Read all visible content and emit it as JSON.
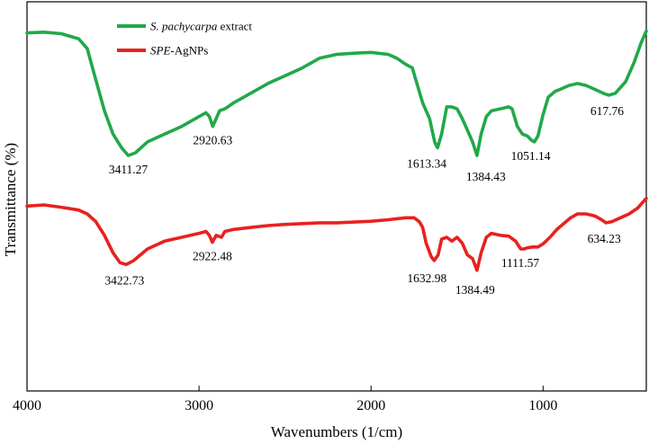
{
  "chart_data": {
    "type": "line",
    "xlabel": "Wavenumbers (1/cm)",
    "ylabel": "Transmittance (%)",
    "xlim": [
      4000,
      400
    ],
    "x_ticks": [
      4000,
      3000,
      2000,
      1000
    ],
    "x_tick_labels": [
      "4000",
      "3000",
      "2000",
      "1000"
    ],
    "legend_position": "top-left",
    "series": [
      {
        "name_italic": "S. pachycarpa",
        "name_rest": " extract",
        "name": "S. pachycarpa extract",
        "color": "#22a84a",
        "points": [
          [
            4000,
            0.92
          ],
          [
            3900,
            0.922
          ],
          [
            3800,
            0.918
          ],
          [
            3700,
            0.905
          ],
          [
            3650,
            0.88
          ],
          [
            3600,
            0.8
          ],
          [
            3550,
            0.72
          ],
          [
            3500,
            0.66
          ],
          [
            3450,
            0.625
          ],
          [
            3411.27,
            0.605
          ],
          [
            3370,
            0.612
          ],
          [
            3300,
            0.64
          ],
          [
            3200,
            0.66
          ],
          [
            3100,
            0.68
          ],
          [
            3000,
            0.705
          ],
          [
            2960,
            0.715
          ],
          [
            2940,
            0.705
          ],
          [
            2920.63,
            0.68
          ],
          [
            2900,
            0.7
          ],
          [
            2880,
            0.72
          ],
          [
            2850,
            0.725
          ],
          [
            2800,
            0.74
          ],
          [
            2700,
            0.765
          ],
          [
            2600,
            0.79
          ],
          [
            2500,
            0.81
          ],
          [
            2400,
            0.83
          ],
          [
            2300,
            0.855
          ],
          [
            2200,
            0.865
          ],
          [
            2100,
            0.868
          ],
          [
            2000,
            0.87
          ],
          [
            1900,
            0.865
          ],
          [
            1850,
            0.855
          ],
          [
            1800,
            0.84
          ],
          [
            1760,
            0.83
          ],
          [
            1740,
            0.8
          ],
          [
            1700,
            0.74
          ],
          [
            1660,
            0.7
          ],
          [
            1630,
            0.64
          ],
          [
            1613.34,
            0.625
          ],
          [
            1590,
            0.66
          ],
          [
            1560,
            0.73
          ],
          [
            1530,
            0.73
          ],
          [
            1500,
            0.725
          ],
          [
            1470,
            0.7
          ],
          [
            1430,
            0.66
          ],
          [
            1410,
            0.64
          ],
          [
            1384.43,
            0.605
          ],
          [
            1360,
            0.66
          ],
          [
            1330,
            0.705
          ],
          [
            1300,
            0.72
          ],
          [
            1250,
            0.725
          ],
          [
            1200,
            0.73
          ],
          [
            1180,
            0.725
          ],
          [
            1150,
            0.68
          ],
          [
            1120,
            0.66
          ],
          [
            1090,
            0.655
          ],
          [
            1070,
            0.645
          ],
          [
            1051.14,
            0.64
          ],
          [
            1030,
            0.655
          ],
          [
            1000,
            0.71
          ],
          [
            970,
            0.755
          ],
          [
            930,
            0.77
          ],
          [
            900,
            0.775
          ],
          [
            850,
            0.785
          ],
          [
            800,
            0.79
          ],
          [
            750,
            0.785
          ],
          [
            700,
            0.775
          ],
          [
            650,
            0.765
          ],
          [
            617.76,
            0.76
          ],
          [
            580,
            0.765
          ],
          [
            520,
            0.795
          ],
          [
            470,
            0.845
          ],
          [
            430,
            0.895
          ],
          [
            400,
            0.925
          ]
        ],
        "annotations": [
          {
            "wavenumber": 3411.27,
            "label": "3411.27"
          },
          {
            "wavenumber": 2920.63,
            "label": "2920.63"
          },
          {
            "wavenumber": 1613.34,
            "label": "1613.34"
          },
          {
            "wavenumber": 1384.43,
            "label": "1384.43"
          },
          {
            "wavenumber": 1051.14,
            "label": "1051.14"
          },
          {
            "wavenumber": 617.76,
            "label": "617.76"
          }
        ]
      },
      {
        "name_italic": "SPE",
        "name_rest": "-AgNPs",
        "name": "SPE-AgNPs",
        "color": "#e8211f",
        "points": [
          [
            4000,
            0.475
          ],
          [
            3900,
            0.478
          ],
          [
            3800,
            0.472
          ],
          [
            3700,
            0.465
          ],
          [
            3650,
            0.455
          ],
          [
            3600,
            0.435
          ],
          [
            3550,
            0.4
          ],
          [
            3500,
            0.355
          ],
          [
            3460,
            0.33
          ],
          [
            3422.73,
            0.325
          ],
          [
            3380,
            0.335
          ],
          [
            3300,
            0.365
          ],
          [
            3200,
            0.385
          ],
          [
            3100,
            0.395
          ],
          [
            3000,
            0.405
          ],
          [
            2960,
            0.41
          ],
          [
            2940,
            0.4
          ],
          [
            2922.48,
            0.382
          ],
          [
            2900,
            0.4
          ],
          [
            2870,
            0.395
          ],
          [
            2850,
            0.41
          ],
          [
            2800,
            0.415
          ],
          [
            2700,
            0.42
          ],
          [
            2600,
            0.425
          ],
          [
            2500,
            0.428
          ],
          [
            2400,
            0.43
          ],
          [
            2300,
            0.432
          ],
          [
            2200,
            0.432
          ],
          [
            2100,
            0.434
          ],
          [
            2000,
            0.436
          ],
          [
            1900,
            0.44
          ],
          [
            1800,
            0.445
          ],
          [
            1750,
            0.445
          ],
          [
            1720,
            0.435
          ],
          [
            1700,
            0.42
          ],
          [
            1680,
            0.38
          ],
          [
            1650,
            0.345
          ],
          [
            1632.98,
            0.335
          ],
          [
            1610,
            0.35
          ],
          [
            1590,
            0.39
          ],
          [
            1560,
            0.395
          ],
          [
            1530,
            0.385
          ],
          [
            1500,
            0.395
          ],
          [
            1470,
            0.38
          ],
          [
            1440,
            0.35
          ],
          [
            1410,
            0.34
          ],
          [
            1384.49,
            0.31
          ],
          [
            1360,
            0.355
          ],
          [
            1330,
            0.395
          ],
          [
            1300,
            0.405
          ],
          [
            1250,
            0.4
          ],
          [
            1200,
            0.398
          ],
          [
            1160,
            0.385
          ],
          [
            1130,
            0.365
          ],
          [
            1111.57,
            0.365
          ],
          [
            1090,
            0.368
          ],
          [
            1060,
            0.37
          ],
          [
            1030,
            0.37
          ],
          [
            1000,
            0.378
          ],
          [
            960,
            0.395
          ],
          [
            920,
            0.415
          ],
          [
            880,
            0.43
          ],
          [
            840,
            0.445
          ],
          [
            800,
            0.455
          ],
          [
            750,
            0.455
          ],
          [
            700,
            0.45
          ],
          [
            660,
            0.44
          ],
          [
            634.23,
            0.432
          ],
          [
            600,
            0.435
          ],
          [
            550,
            0.445
          ],
          [
            500,
            0.455
          ],
          [
            450,
            0.47
          ],
          [
            400,
            0.495
          ]
        ],
        "annotations": [
          {
            "wavenumber": 3422.73,
            "label": "3422.73"
          },
          {
            "wavenumber": 2922.48,
            "label": "2922.48"
          },
          {
            "wavenumber": 1632.98,
            "label": "1632.98"
          },
          {
            "wavenumber": 1384.49,
            "label": "1384.49"
          },
          {
            "wavenumber": 1111.57,
            "label": "1111.57"
          },
          {
            "wavenumber": 634.23,
            "label": "634.23"
          }
        ]
      }
    ]
  }
}
